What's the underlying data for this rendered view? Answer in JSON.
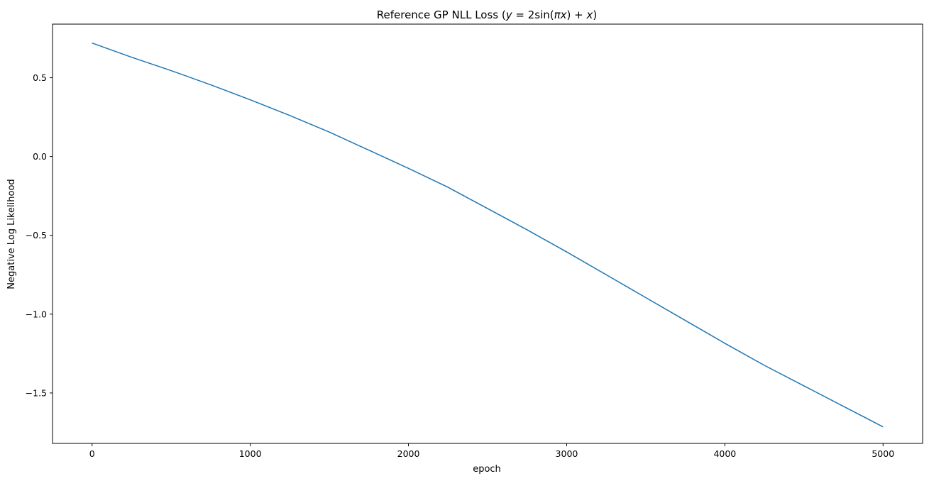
{
  "chart_data": {
    "type": "line",
    "title": "Reference GP NLL Loss (y = 2sin(πx) + x)",
    "title_parts": {
      "prefix": "Reference GP NLL Loss (",
      "y": "y",
      "eq": " = 2sin(",
      "pi": "π",
      "x1": "x",
      "mid": ") + ",
      "x2": "x",
      "suffix": ")"
    },
    "xlabel": "epoch",
    "ylabel": "Negative Log Likelihood",
    "xlim": [
      -250,
      5250
    ],
    "ylim": [
      -1.82,
      0.84
    ],
    "xticks": [
      0,
      1000,
      2000,
      3000,
      4000,
      5000
    ],
    "xtick_labels": [
      "0",
      "1000",
      "2000",
      "3000",
      "4000",
      "5000"
    ],
    "yticks": [
      0.5,
      0.0,
      -0.5,
      -1.0,
      -1.5
    ],
    "ytick_labels": [
      "0.5",
      "0.0",
      "−0.5",
      "−1.0",
      "−1.5"
    ],
    "grid": false,
    "series": [
      {
        "color": "#1f77b4",
        "x": [
          0,
          250,
          500,
          750,
          1000,
          1250,
          1500,
          1750,
          2000,
          2250,
          2500,
          2750,
          3000,
          3250,
          3500,
          3750,
          4000,
          4250,
          4500,
          4750,
          5000
        ],
        "y": [
          0.72,
          0.63,
          0.545,
          0.455,
          0.36,
          0.26,
          0.155,
          0.04,
          -0.075,
          -0.195,
          -0.33,
          -0.465,
          -0.605,
          -0.75,
          -0.895,
          -1.04,
          -1.185,
          -1.325,
          -1.455,
          -1.585,
          -1.715
        ]
      }
    ]
  }
}
